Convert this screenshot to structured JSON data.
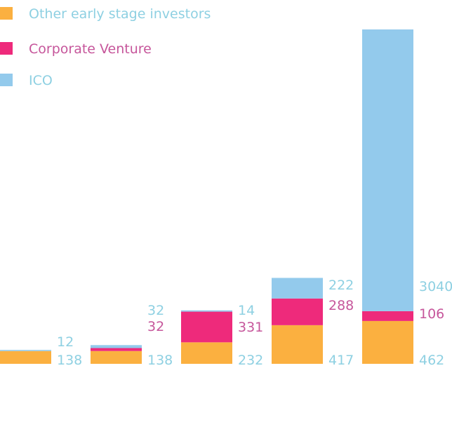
{
  "chart_data": {
    "type": "bar",
    "stacked": true,
    "categories": [
      "",
      "",
      "",
      "",
      ""
    ],
    "series": [
      {
        "name": "Other early stage investors",
        "values": [
          138,
          138,
          232,
          417,
          462
        ],
        "color": "#FBB040",
        "label_color": "#8ED0E2"
      },
      {
        "name": "Corporate Venture",
        "values": [
          0,
          32,
          331,
          288,
          106
        ],
        "color": "#EE2A7B",
        "label_color": "#C6569B"
      },
      {
        "name": "ICO",
        "values": [
          12,
          32,
          14,
          222,
          3040
        ],
        "color": "#93CAEC",
        "label_color": "#8ED0E2"
      }
    ],
    "data_labels": [
      [
        "12",
        "138"
      ],
      [
        "32",
        "32",
        "138"
      ],
      [
        "14",
        "331",
        "232"
      ],
      [
        "222",
        "288",
        "417"
      ],
      [
        "3040",
        "106",
        "462"
      ]
    ],
    "legend": {
      "position": "top-left",
      "text_colors": [
        "#8ED0E2",
        "#C6569B",
        "#8ED0E2"
      ]
    },
    "grid": false,
    "axes_visible": false
  }
}
